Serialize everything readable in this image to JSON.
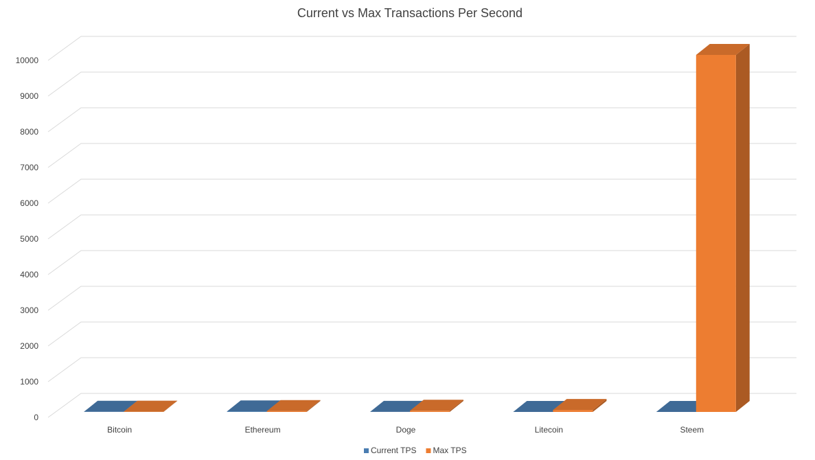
{
  "chart_data": {
    "type": "bar3d",
    "title": "Current vs Max Transactions Per Second",
    "categories": [
      "Bitcoin",
      "Ethereum",
      "Doge",
      "Litecoin",
      "Steem"
    ],
    "series": [
      {
        "name": "Current TPS",
        "color": "#4a7db1",
        "values": [
          4,
          15,
          2,
          1,
          1
        ]
      },
      {
        "name": "Max TPS",
        "color": "#ed7d31",
        "values": [
          7,
          25,
          33,
          56,
          10000
        ]
      }
    ],
    "ylim": [
      0,
      10000
    ],
    "yticks": [
      0,
      1000,
      2000,
      3000,
      4000,
      5000,
      6000,
      7000,
      8000,
      9000,
      10000
    ],
    "grid": true,
    "legend": "bottom"
  }
}
